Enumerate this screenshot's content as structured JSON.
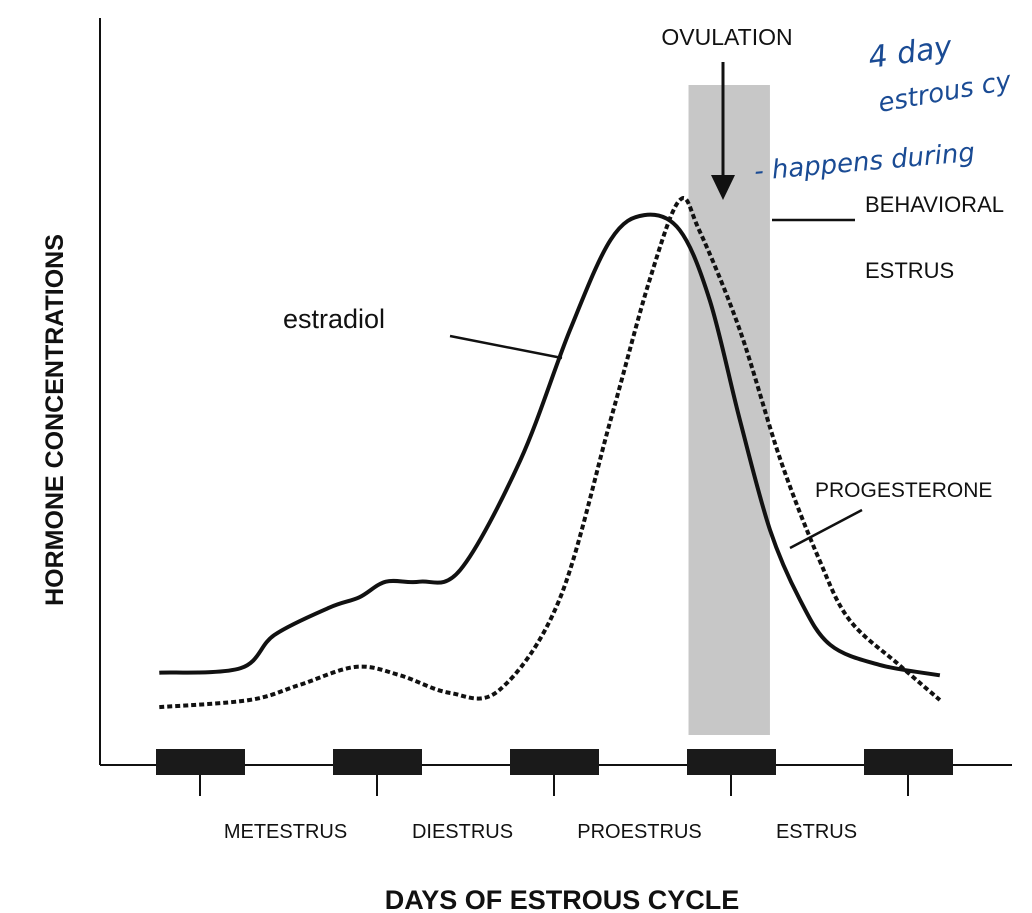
{
  "chart_data": {
    "type": "line",
    "title": "",
    "xlabel": "DAYS OF ESTROUS CYCLE",
    "ylabel": "HORMONE CONCENTRATIONS",
    "xlim": [
      -0.6,
      4.6
    ],
    "ylim": [
      0,
      100
    ],
    "grid": false,
    "x_units": "days (tick index)",
    "y_units": "relative concentration",
    "phase_labels": [
      "METESTRUS",
      "DIESTRUS",
      "PROESTRUS",
      "ESTRUS"
    ],
    "day_bars": [
      0,
      1,
      2,
      3,
      4
    ],
    "series": [
      {
        "name": "estradiol",
        "style": "solid",
        "x": [
          -0.23,
          0.23,
          0.42,
          0.73,
          0.9,
          1.05,
          1.24,
          1.47,
          1.81,
          2.09,
          2.32,
          2.51,
          2.71,
          2.88,
          3.05,
          3.22,
          3.39,
          3.56,
          3.84,
          4.18
        ],
        "y": [
          14.2,
          14.9,
          20,
          24.2,
          25.8,
          28.2,
          28.2,
          30,
          46.9,
          66.9,
          80.8,
          84.6,
          82.3,
          71.5,
          53.1,
          36.2,
          25.4,
          18.5,
          15.4,
          13.8
        ]
      },
      {
        "name": "PROGESTERONE",
        "style": "dashed",
        "x": [
          -0.23,
          0.28,
          0.56,
          0.88,
          1.13,
          1.41,
          1.69,
          2.03,
          2.32,
          2.54,
          2.71,
          2.82,
          3.05,
          3.28,
          3.5,
          3.67,
          3.95,
          4.18
        ],
        "y": [
          8.9,
          10,
          12.3,
          15.1,
          13.8,
          11.1,
          11.5,
          25.4,
          53.1,
          74.6,
          86.9,
          82.3,
          66.9,
          46.9,
          31.5,
          22.3,
          15.4,
          10
        ]
      }
    ],
    "annotations": {
      "ovulation": {
        "text": "OVULATION",
        "x": 2.95
      },
      "behavioral_estrus": {
        "line1": "BEHAVIORAL",
        "line2": "ESTRUS",
        "x_range": [
          2.76,
          3.22
        ]
      }
    },
    "handwritten_notes": [
      "4 day",
      "estrous cy",
      "- happens during"
    ]
  }
}
